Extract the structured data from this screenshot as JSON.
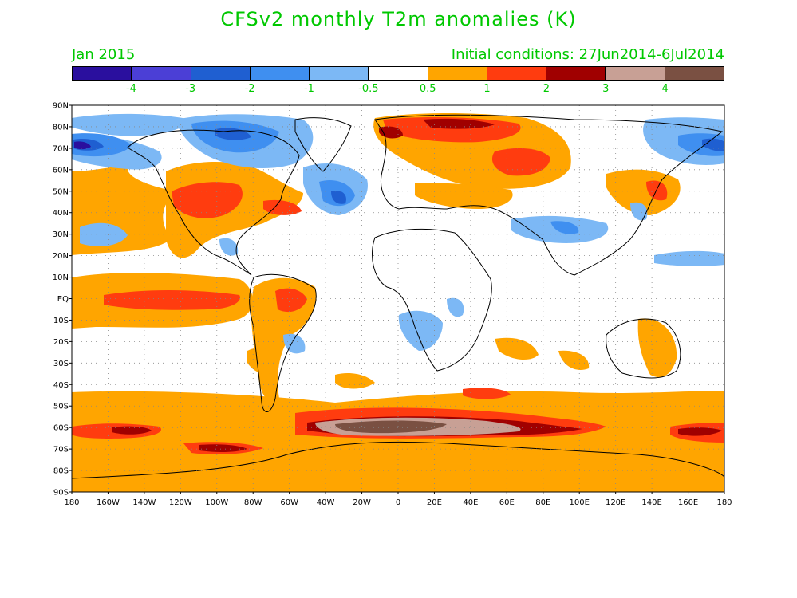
{
  "title": "CFSv2 monthly T2m anomalies (K)",
  "valid_month": "Jan 2015",
  "initial_conditions": "Initial conditions: 27Jun2014-6Jul2014",
  "colorbar": {
    "colors": [
      "#2a0f9e",
      "#4b3fd6",
      "#1f5fd1",
      "#3f8ff0",
      "#7cb8f5",
      "#ffffff",
      "#ffa500",
      "#ff3c0f",
      "#a00000",
      "#c8a095",
      "#7a5042"
    ],
    "labels": [
      "-4",
      "-3",
      "-2",
      "-1",
      "-0.5",
      "0.5",
      "1",
      "2",
      "3",
      "4"
    ]
  },
  "axes": {
    "lat_labels": [
      "90N",
      "80N",
      "70N",
      "60N",
      "50N",
      "40N",
      "30N",
      "20N",
      "10N",
      "EQ",
      "10S",
      "20S",
      "30S",
      "40S",
      "50S",
      "60S",
      "70S",
      "80S",
      "90S"
    ],
    "lon_labels": [
      "180",
      "160W",
      "140W",
      "120W",
      "100W",
      "80W",
      "60W",
      "40W",
      "20W",
      "0",
      "20E",
      "40E",
      "60E",
      "80E",
      "100E",
      "120E",
      "140E",
      "160E",
      "180"
    ]
  },
  "map_data": {
    "type": "filled-contour-map",
    "variable": "T2m anomaly",
    "units": "K",
    "projection": "cylindrical",
    "lon_range": [
      -180,
      180
    ],
    "lat_range": [
      -90,
      90
    ],
    "features": [
      {
        "region": "Southern Ocean ~50S-70S, 0-60E",
        "anomaly": ">4"
      },
      {
        "region": "Arctic north of Scandinavia / Barents Sea",
        "anomaly": "2 to 3"
      },
      {
        "region": "NW Russia ~60N-70N, 40E-70E",
        "anomaly": "1 to 2"
      },
      {
        "region": "Eastern North America / Great Lakes",
        "anomaly": "1 to 2"
      },
      {
        "region": "Western Canada / NW USA",
        "anomaly": "1 to 2"
      },
      {
        "region": "Equatorial Pacific ~0-5N, 170W-110W",
        "anomaly": "1 to 2"
      },
      {
        "region": "Canadian Arctic Archipelago / Greenland",
        "anomaly": "-2 to -1"
      },
      {
        "region": "Alaska / Bering Strait",
        "anomaly": "-4 to -2"
      },
      {
        "region": "North Atlantic ~45N, 40W",
        "anomaly": "-2 to -1"
      },
      {
        "region": "Central / East Asia ~30N-40N, 60E-120E",
        "anomaly": "-1 to -0.5"
      },
      {
        "region": "Southern Africa",
        "anomaly": "-1 to -0.5"
      },
      {
        "region": "Antarctic coastal ocean ~65S-70S",
        "anomaly": "0.5 to 1"
      }
    ]
  }
}
